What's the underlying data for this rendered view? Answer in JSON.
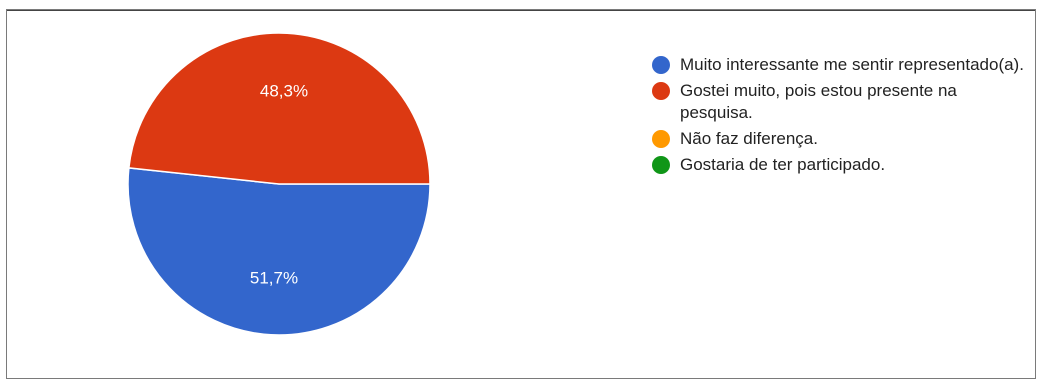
{
  "chart_data": {
    "type": "pie",
    "title": "",
    "categories": [
      "Muito interessante me sentir representado(a).",
      "Gostei muito, pois estou presente na pesquisa.",
      "Não faz diferença.",
      "Gostaria de ter participado."
    ],
    "values": [
      51.7,
      48.3,
      0,
      0
    ],
    "data_labels": [
      "51,7%",
      "48,3%",
      "",
      ""
    ],
    "colors": [
      "#3366cc",
      "#dc3912",
      "#ff9900",
      "#109618"
    ],
    "legend_position": "right"
  }
}
